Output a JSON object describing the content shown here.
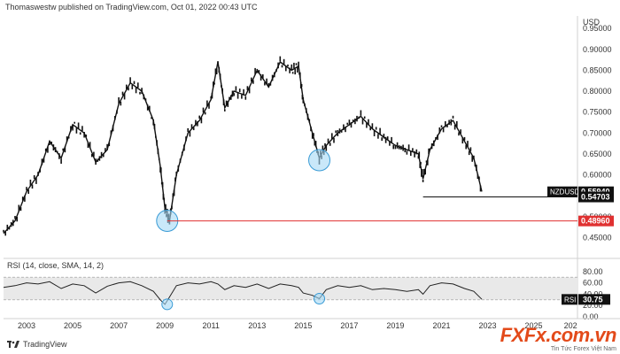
{
  "header": {
    "published": "Thomaswestw published on TradingView.com, Oct 01, 2022 00:43 UTC"
  },
  "branding": {
    "tradingview": "TradingView",
    "watermark": "FXFx.com.vn",
    "watermark_sub": "Tin Tức Forex Việt Nam"
  },
  "colors": {
    "price_line": "#111111",
    "support_line": "#e03131",
    "circle_fill": "#a5d8f5",
    "circle_stroke": "#3a9bd5",
    "rsi_band": "#e9e9e9",
    "label_red": "#e03131",
    "label_black": "#111111"
  },
  "chart_data": [
    {
      "type": "line",
      "symbol": "NZDUSD",
      "ylabel": "USD",
      "ylim": [
        0.4,
        0.98
      ],
      "yticks": [
        0.45,
        0.5,
        0.55,
        0.6,
        0.65,
        0.7,
        0.75,
        0.8,
        0.85,
        0.9,
        0.95
      ],
      "xticks": [
        "2003",
        "2005",
        "2007",
        "2009",
        "2011",
        "2013",
        "2015",
        "2017",
        "2019",
        "2021",
        "2023",
        "2025",
        "202"
      ],
      "x": [
        2002.0,
        2002.5,
        2003.0,
        2003.5,
        2004.0,
        2004.5,
        2005.0,
        2005.5,
        2006.0,
        2006.5,
        2007.0,
        2007.5,
        2008.0,
        2008.5,
        2008.8,
        2009.0,
        2009.2,
        2009.5,
        2010.0,
        2010.5,
        2011.0,
        2011.3,
        2011.6,
        2012.0,
        2012.5,
        2013.0,
        2013.5,
        2014.0,
        2014.5,
        2014.8,
        2015.0,
        2015.4,
        2015.7,
        2016.0,
        2016.5,
        2017.0,
        2017.5,
        2018.0,
        2018.5,
        2019.0,
        2019.5,
        2020.0,
        2020.2,
        2020.5,
        2021.0,
        2021.5,
        2022.0,
        2022.4,
        2022.75
      ],
      "y": [
        0.46,
        0.49,
        0.56,
        0.6,
        0.68,
        0.64,
        0.72,
        0.7,
        0.63,
        0.66,
        0.77,
        0.82,
        0.8,
        0.73,
        0.62,
        0.52,
        0.49,
        0.6,
        0.7,
        0.73,
        0.78,
        0.87,
        0.76,
        0.8,
        0.79,
        0.85,
        0.81,
        0.87,
        0.85,
        0.86,
        0.78,
        0.7,
        0.64,
        0.67,
        0.7,
        0.72,
        0.74,
        0.71,
        0.69,
        0.67,
        0.66,
        0.65,
        0.59,
        0.66,
        0.71,
        0.73,
        0.68,
        0.64,
        0.56
      ],
      "annotations": [
        {
          "label": "NZDUSD",
          "value": "0.55940"
        },
        {
          "value": "0.54703",
          "level": 0.54703
        },
        {
          "value": "0.48960",
          "level": 0.4896
        }
      ],
      "circled_lows": [
        [
          2009.1,
          0.49
        ],
        [
          2015.7,
          0.635
        ]
      ]
    },
    {
      "type": "line",
      "title": "RSI (14, close, SMA, 14, 2)",
      "ylim": [
        0,
        100
      ],
      "yticks": [
        0.0,
        20.0,
        40.0,
        60.0,
        80.0
      ],
      "bands": [
        30,
        70
      ],
      "x": [
        2002.0,
        2002.5,
        2003.0,
        2003.5,
        2004.0,
        2004.5,
        2005.0,
        2005.5,
        2006.0,
        2006.5,
        2007.0,
        2007.5,
        2008.0,
        2008.5,
        2008.8,
        2009.0,
        2009.2,
        2009.5,
        2010.0,
        2010.5,
        2011.0,
        2011.3,
        2011.6,
        2012.0,
        2012.5,
        2013.0,
        2013.5,
        2014.0,
        2014.5,
        2014.8,
        2015.0,
        2015.4,
        2015.7,
        2016.0,
        2016.5,
        2017.0,
        2017.5,
        2018.0,
        2018.5,
        2019.0,
        2019.5,
        2020.0,
        2020.2,
        2020.5,
        2021.0,
        2021.5,
        2022.0,
        2022.4,
        2022.75
      ],
      "y": [
        52,
        55,
        60,
        58,
        62,
        50,
        58,
        55,
        42,
        54,
        60,
        62,
        55,
        45,
        30,
        22,
        35,
        55,
        60,
        58,
        62,
        58,
        48,
        55,
        52,
        58,
        50,
        58,
        55,
        52,
        42,
        38,
        32,
        48,
        55,
        52,
        55,
        48,
        50,
        48,
        45,
        48,
        40,
        55,
        60,
        58,
        50,
        45,
        31
      ],
      "last": {
        "label": "RSI",
        "value": "30.75"
      },
      "circled_lows": [
        [
          2009.1,
          22
        ],
        [
          2015.7,
          32
        ]
      ]
    }
  ]
}
